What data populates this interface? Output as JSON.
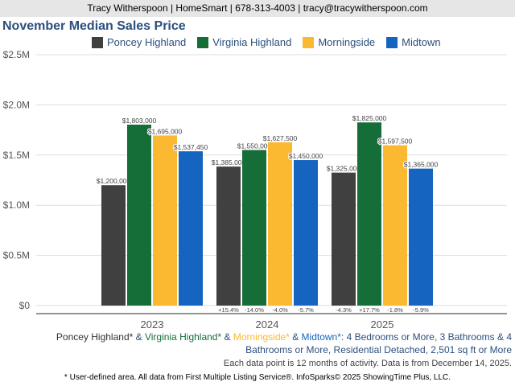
{
  "header": "Tracy Witherspoon | HomeSmart | 678-313-4003 | tracy@tracywitherspoon.com",
  "chart_data": {
    "type": "bar",
    "title": "November Median Sales Price",
    "categories": [
      "2023",
      "2024",
      "2025"
    ],
    "ylim": [
      0,
      2500000
    ],
    "yticks": [
      "$0",
      "$0.5M",
      "$1.0M",
      "$1.5M",
      "$2.0M",
      "$2.5M"
    ],
    "grid": true,
    "legend": "top",
    "series": [
      {
        "name": "Poncey Highland",
        "color": "#404040",
        "values": [
          1200000,
          1385000,
          1325000
        ],
        "labels": [
          "$1,200,000",
          "$1,385,000",
          "$1,325,000"
        ],
        "changes": [
          "",
          "+15.4%",
          "-4.3%"
        ]
      },
      {
        "name": "Virginia Highland",
        "color": "#156d38",
        "values": [
          1803000,
          1550000,
          1825000
        ],
        "labels": [
          "$1,803,000",
          "$1,550,000",
          "$1,825,000"
        ],
        "changes": [
          "",
          "-14.0%",
          "+17.7%"
        ]
      },
      {
        "name": "Morningside",
        "color": "#fbb931",
        "values": [
          1695000,
          1627500,
          1597500
        ],
        "labels": [
          "$1,695,000",
          "$1,627,500",
          "$1,597,500"
        ],
        "changes": [
          "",
          "-4.0%",
          "-1.8%"
        ]
      },
      {
        "name": "Midtown",
        "color": "#1565c0",
        "values": [
          1537450,
          1450000,
          1365000
        ],
        "labels": [
          "$1,537,450",
          "$1,450,000",
          "$1,365,000"
        ],
        "changes": [
          "",
          "-5.7%",
          "-5.9%"
        ]
      }
    ]
  },
  "description": {
    "areas": [
      "Poncey Highland*",
      "Virginia Highland*",
      "Morningside*",
      "Midtown*"
    ],
    "sep": " & ",
    "criteria": ": 4 Bedrooms or More, 3 Bathrooms & 4 Bathrooms or More, Residential Detached, 2,501 sq ft or More"
  },
  "note": "Each data point is 12 months of activity. Data is from December 14, 2025.",
  "footer": "* User-defined area. All data from First Multiple Listing Service®. InfoSparks© 2025 ShowingTime Plus, LLC."
}
